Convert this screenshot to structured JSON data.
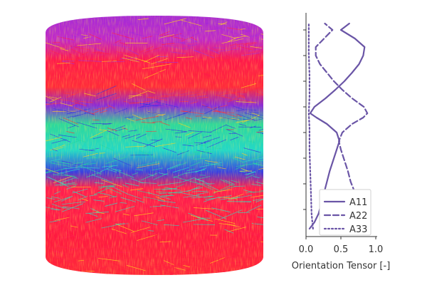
{
  "image": {
    "type": "fiber-orientation-rendering",
    "band_colors": [
      "#a52bd8",
      "#ff1a4a",
      "#ff2a3a",
      "#2e2ee8",
      "#1fd8a0",
      "#22e0c8",
      "#ff2050",
      "#ff1a40"
    ]
  },
  "chart_data": {
    "type": "line",
    "orientation": "vertical-profile",
    "xlabel": "Orientation Tensor [-]",
    "xlim": [
      0,
      1.0
    ],
    "x_ticks": [
      "0.0",
      "0.5",
      "1.0"
    ],
    "ylim": [
      0,
      1
    ],
    "y_tick_count": 8,
    "y_tick_labels_shown": false,
    "grid": false,
    "legend_position": "bottom-right",
    "line_color": "#6a55a6",
    "series": [
      {
        "name": "A11",
        "line_style": "solid",
        "points": [
          {
            "y": 0.03,
            "x": 0.05
          },
          {
            "y": 0.06,
            "x": 0.12
          },
          {
            "y": 0.1,
            "x": 0.18
          },
          {
            "y": 0.15,
            "x": 0.22
          },
          {
            "y": 0.2,
            "x": 0.26
          },
          {
            "y": 0.25,
            "x": 0.3
          },
          {
            "y": 0.3,
            "x": 0.34
          },
          {
            "y": 0.35,
            "x": 0.39
          },
          {
            "y": 0.4,
            "x": 0.44
          },
          {
            "y": 0.44,
            "x": 0.48
          },
          {
            "y": 0.48,
            "x": 0.44
          },
          {
            "y": 0.52,
            "x": 0.3
          },
          {
            "y": 0.55,
            "x": 0.15
          },
          {
            "y": 0.57,
            "x": 0.06
          },
          {
            "y": 0.6,
            "x": 0.12
          },
          {
            "y": 0.64,
            "x": 0.28
          },
          {
            "y": 0.68,
            "x": 0.42
          },
          {
            "y": 0.72,
            "x": 0.55
          },
          {
            "y": 0.76,
            "x": 0.66
          },
          {
            "y": 0.8,
            "x": 0.76
          },
          {
            "y": 0.84,
            "x": 0.82
          },
          {
            "y": 0.88,
            "x": 0.84
          },
          {
            "y": 0.92,
            "x": 0.7
          },
          {
            "y": 0.96,
            "x": 0.5
          },
          {
            "y": 0.99,
            "x": 0.62
          }
        ]
      },
      {
        "name": "A22",
        "line_style": "dashed",
        "points": [
          {
            "y": 0.03,
            "x": 0.6
          },
          {
            "y": 0.06,
            "x": 0.74
          },
          {
            "y": 0.1,
            "x": 0.79
          },
          {
            "y": 0.15,
            "x": 0.74
          },
          {
            "y": 0.2,
            "x": 0.7
          },
          {
            "y": 0.25,
            "x": 0.64
          },
          {
            "y": 0.3,
            "x": 0.6
          },
          {
            "y": 0.35,
            "x": 0.55
          },
          {
            "y": 0.4,
            "x": 0.5
          },
          {
            "y": 0.44,
            "x": 0.47
          },
          {
            "y": 0.48,
            "x": 0.52
          },
          {
            "y": 0.52,
            "x": 0.66
          },
          {
            "y": 0.55,
            "x": 0.82
          },
          {
            "y": 0.57,
            "x": 0.88
          },
          {
            "y": 0.6,
            "x": 0.83
          },
          {
            "y": 0.64,
            "x": 0.66
          },
          {
            "y": 0.68,
            "x": 0.52
          },
          {
            "y": 0.72,
            "x": 0.4
          },
          {
            "y": 0.76,
            "x": 0.3
          },
          {
            "y": 0.8,
            "x": 0.2
          },
          {
            "y": 0.84,
            "x": 0.14
          },
          {
            "y": 0.88,
            "x": 0.14
          },
          {
            "y": 0.92,
            "x": 0.26
          },
          {
            "y": 0.96,
            "x": 0.38
          },
          {
            "y": 0.99,
            "x": 0.27
          }
        ]
      },
      {
        "name": "A33",
        "line_style": "dotted",
        "points": [
          {
            "y": 0.03,
            "x": 0.1
          },
          {
            "y": 0.1,
            "x": 0.08
          },
          {
            "y": 0.2,
            "x": 0.07
          },
          {
            "y": 0.3,
            "x": 0.06
          },
          {
            "y": 0.4,
            "x": 0.05
          },
          {
            "y": 0.5,
            "x": 0.05
          },
          {
            "y": 0.57,
            "x": 0.04
          },
          {
            "y": 0.65,
            "x": 0.05
          },
          {
            "y": 0.75,
            "x": 0.05
          },
          {
            "y": 0.85,
            "x": 0.04
          },
          {
            "y": 0.92,
            "x": 0.04
          },
          {
            "y": 0.99,
            "x": 0.04
          }
        ]
      }
    ]
  }
}
